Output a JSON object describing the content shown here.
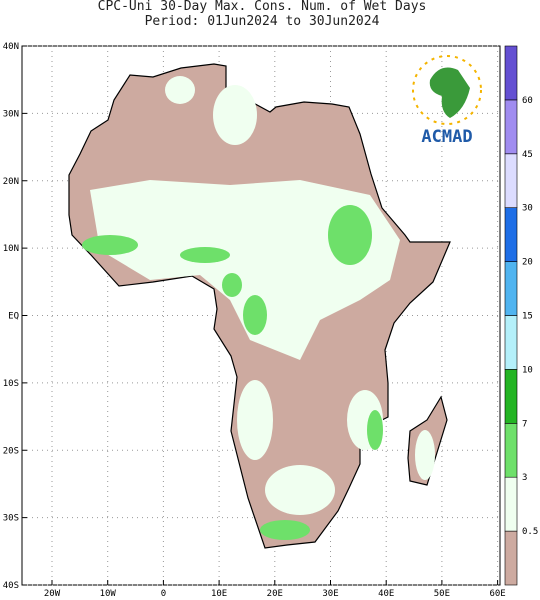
{
  "header": {
    "title": "CPC-Uni 30-Day Max. Cons. Num. of Wet Days",
    "subtitle": "Period: 01Jun2024 to 30Jun2024"
  },
  "map": {
    "lat_labels": [
      "40N",
      "30N",
      "20N",
      "10N",
      "EQ",
      "10S",
      "20S",
      "30S",
      "40S"
    ],
    "lon_labels": [
      "20W",
      "10W",
      "0",
      "10E",
      "20E",
      "30E",
      "40E",
      "50E",
      "60E"
    ]
  },
  "colorbar": {
    "labels": [
      "0.5",
      "3",
      "7",
      "10",
      "15",
      "20",
      "30",
      "45",
      "60"
    ],
    "colors": [
      "#cdaaa0",
      "#f0fff0",
      "#6ee06a",
      "#23b423",
      "#b4f0fa",
      "#50b4f0",
      "#1e6ee6",
      "#dcdcff",
      "#a08cf0",
      "#6450d2"
    ]
  },
  "logo": {
    "text": "ACMAD"
  }
}
